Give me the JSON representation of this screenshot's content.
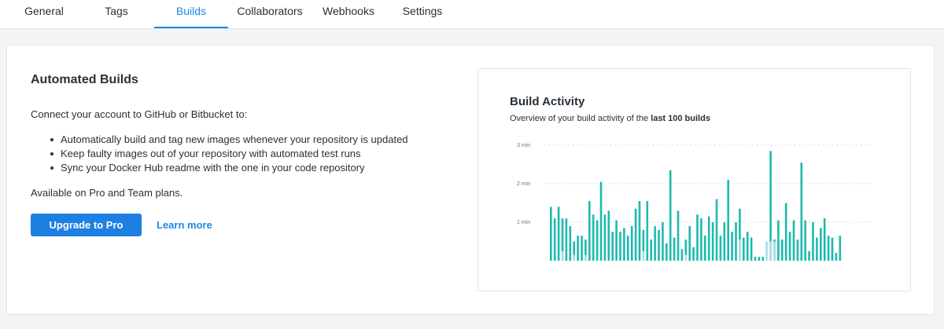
{
  "tabs": [
    {
      "label": "General",
      "active": false
    },
    {
      "label": "Tags",
      "active": false
    },
    {
      "label": "Builds",
      "active": true
    },
    {
      "label": "Collaborators",
      "active": false
    },
    {
      "label": "Webhooks",
      "active": false
    },
    {
      "label": "Settings",
      "active": false
    }
  ],
  "automated_builds": {
    "title": "Automated Builds",
    "intro": "Connect your account to GitHub or Bitbucket to:",
    "bullets": [
      "Automatically build and tag new images whenever your repository is updated",
      "Keep faulty images out of your repository with automated test runs",
      "Sync your Docker Hub readme with the one in your code repository"
    ],
    "availability": "Available on Pro and Team plans.",
    "upgrade_button": "Upgrade to Pro",
    "learn_more": "Learn more"
  },
  "build_activity": {
    "title": "Build Activity",
    "subtitle_prefix": "Overview of your build activity of the ",
    "subtitle_bold": "last 100 builds"
  },
  "colors": {
    "accent": "#1d87e4",
    "button": "#1e7fe3",
    "bar_success": "#1dbaae",
    "bar_other": "#b3dde8"
  },
  "chart_data": {
    "type": "bar",
    "ylabel": "",
    "xlabel": "",
    "y_ticks": [
      "1 min",
      "2 min",
      "3 min"
    ],
    "ylim": [
      0,
      3
    ],
    "grid": true,
    "series": [
      {
        "values": [
          1.4,
          1.1,
          1.4,
          1.1,
          1.1,
          0.9,
          0.5,
          0.65,
          0.65,
          0.55,
          1.55,
          1.2,
          1.05,
          2.05,
          1.2,
          1.3,
          0.75,
          1.05,
          0.75,
          0.85,
          0.65,
          0.9,
          1.35,
          1.55,
          0.8,
          1.55,
          0.55,
          0.9,
          0.8,
          1.0,
          0.45,
          2.35,
          0.6,
          1.3,
          0.3,
          0.55,
          0.9,
          0.35,
          1.2,
          1.1,
          0.65,
          1.15,
          1.0,
          1.6,
          0.65,
          1.0,
          2.1,
          0.75,
          1.0,
          1.35,
          0.6,
          0.75,
          0.6,
          0.1,
          0.1,
          0.1,
          0.5,
          2.85,
          0.55,
          1.05,
          0.55,
          1.5,
          0.75,
          1.05,
          0.55,
          2.55,
          1.05,
          0.25,
          1.0,
          0.6,
          0.85,
          1.1,
          0.65,
          0.6,
          0.2,
          0.65
        ]
      },
      {
        "values": [
          0.0,
          0.0,
          0.0,
          0.25,
          0.0,
          0.0,
          0.15,
          0.0,
          0.0,
          0.15,
          0.0,
          0.0,
          0.0,
          0.0,
          0.0,
          0.0,
          0.0,
          0.0,
          0.0,
          0.0,
          0.0,
          0.0,
          0.0,
          0.0,
          0.25,
          0.0,
          0.0,
          0.0,
          0.0,
          0.0,
          0.0,
          0.0,
          0.0,
          0.0,
          0.0,
          0.15,
          0.0,
          0.0,
          0.0,
          0.0,
          0.0,
          0.0,
          0.0,
          0.0,
          0.0,
          0.0,
          0.0,
          0.0,
          0.0,
          0.55,
          0.0,
          0.0,
          0.0,
          0.0,
          0.0,
          0.0,
          0.5,
          0.5,
          0.5,
          0.0,
          0.0,
          0.0,
          0.0,
          0.0,
          0.0,
          0.0,
          0.0,
          0.0,
          0.0,
          0.0,
          0.0,
          0.0,
          0.0,
          0.0,
          0.0,
          0.0
        ]
      }
    ]
  }
}
